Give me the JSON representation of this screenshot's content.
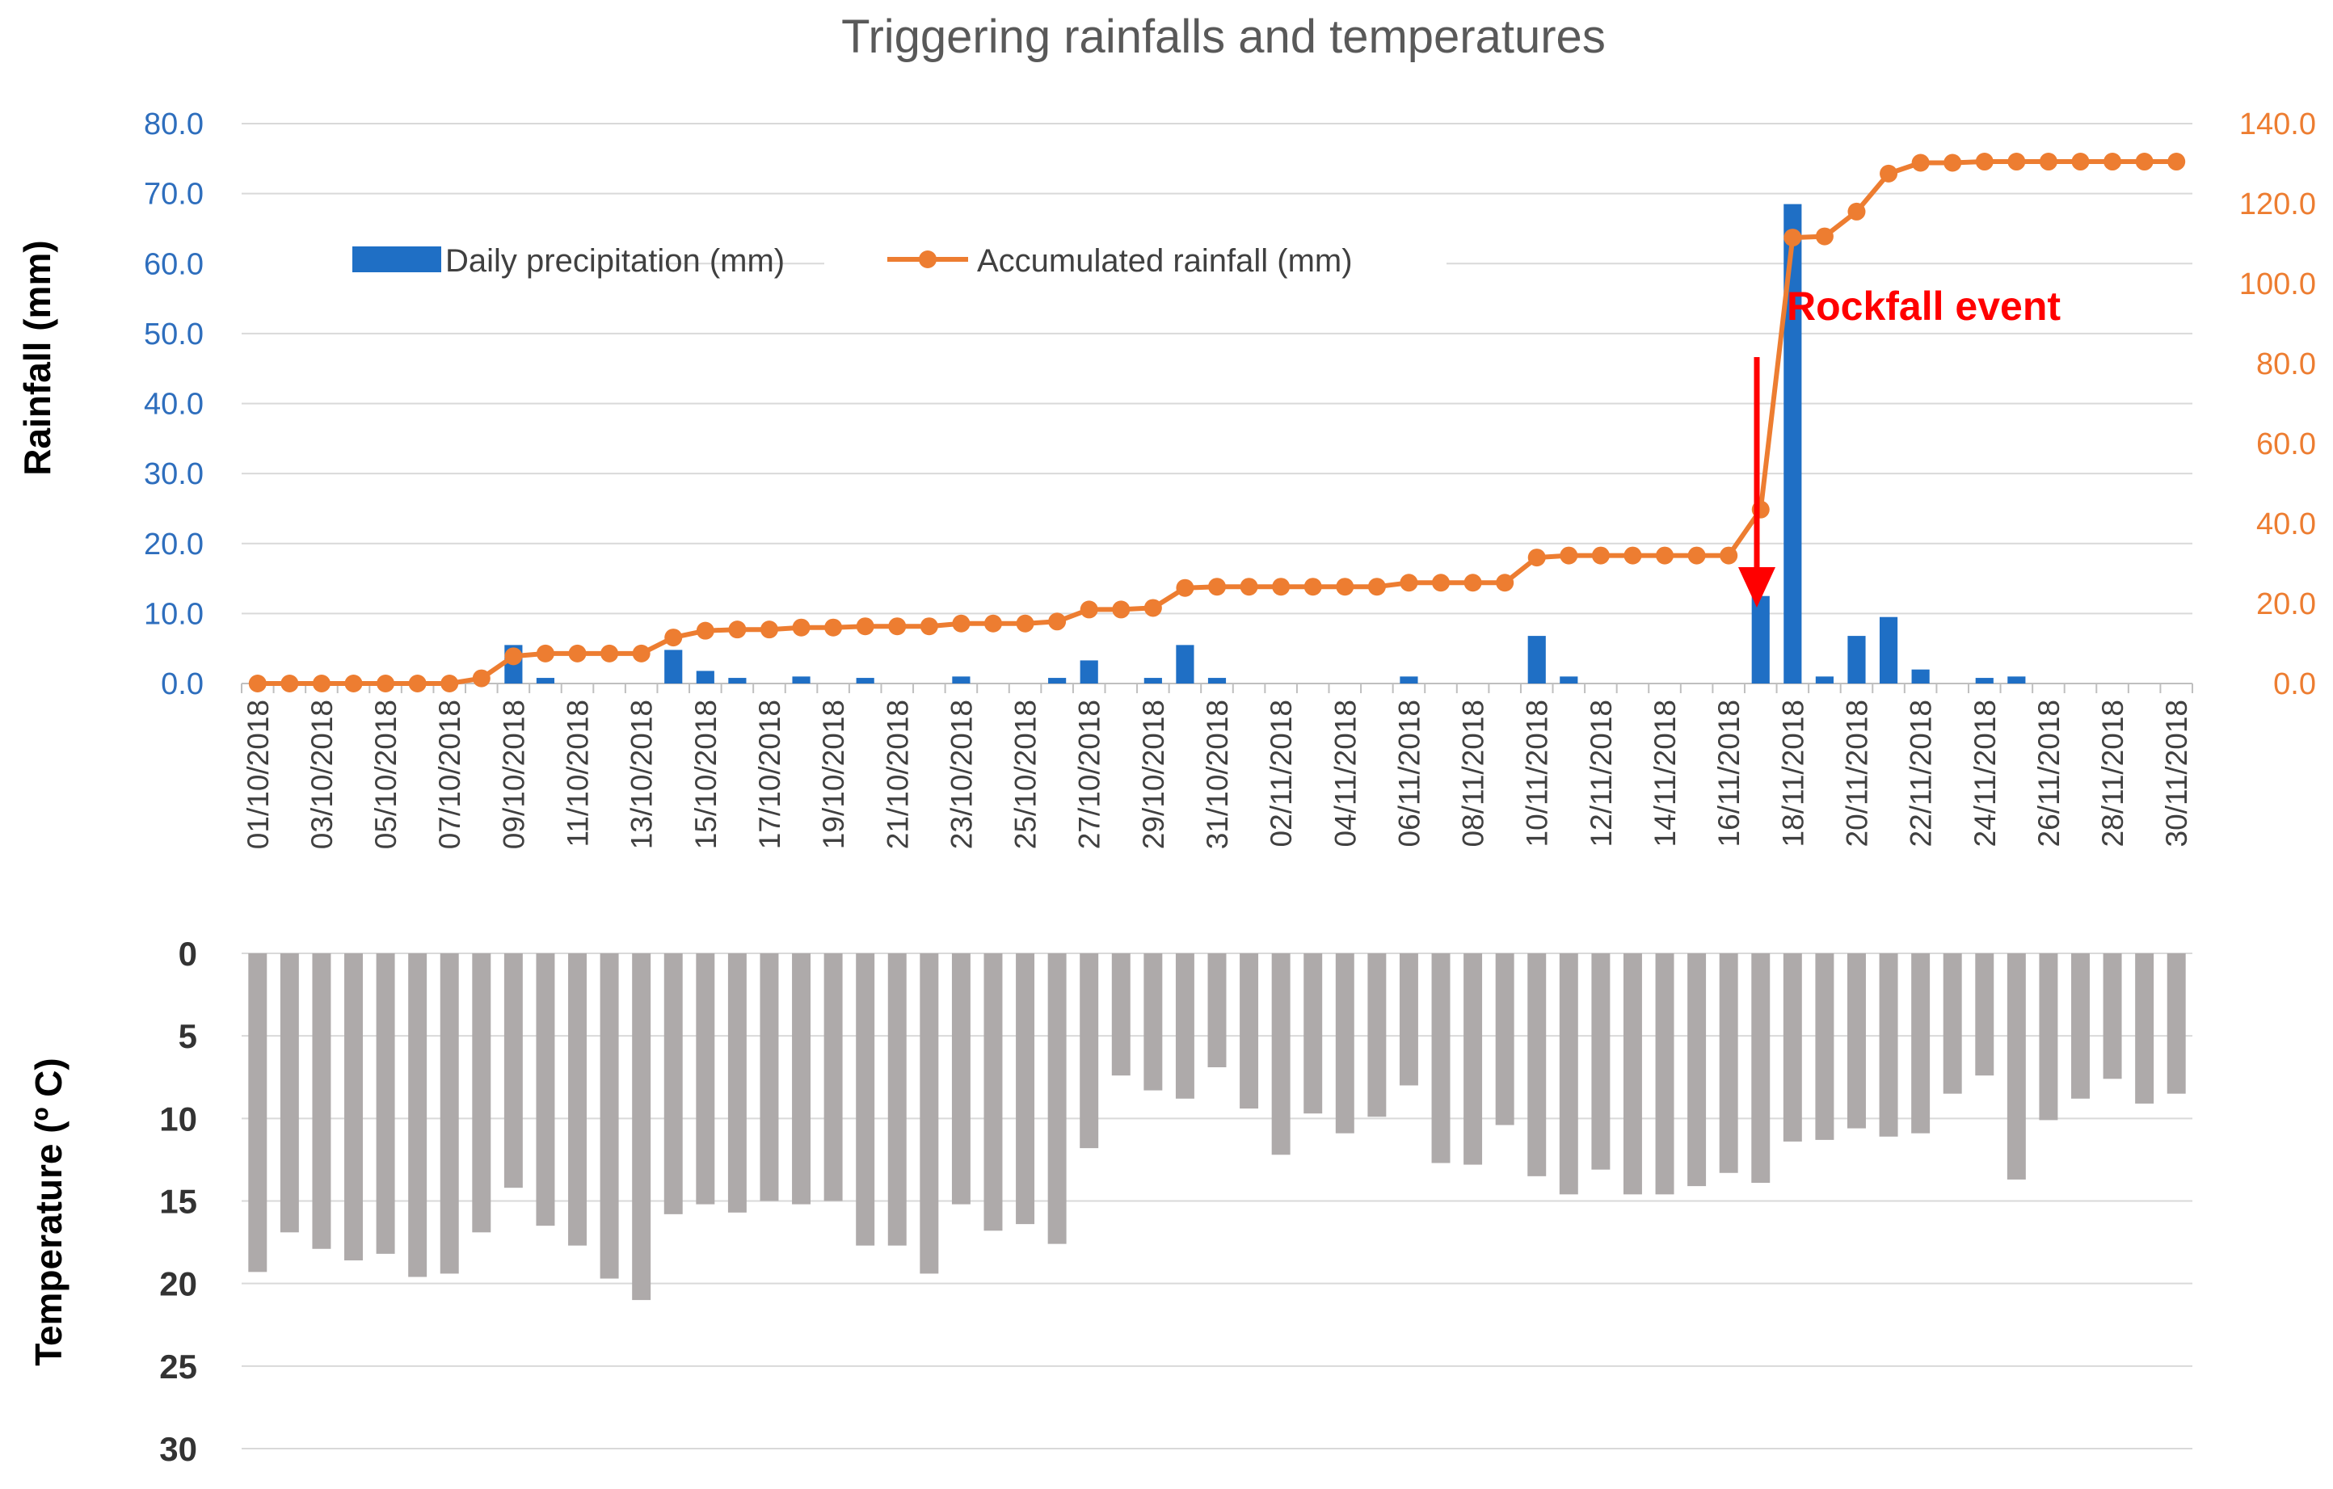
{
  "chart_data": [
    {
      "type": "bar+line",
      "title": "Triggering rainfalls and temperatures",
      "ylabel": "Rainfall (mm)",
      "ylim": [
        0,
        80
      ],
      "y_ticks": [
        "0.0",
        "10.0",
        "20.0",
        "30.0",
        "40.0",
        "50.0",
        "60.0",
        "70.0",
        "80.0"
      ],
      "y2lim": [
        0,
        140
      ],
      "y2_ticks": [
        "0.0",
        "20.0",
        "40.0",
        "60.0",
        "80.0",
        "100.0",
        "120.0",
        "140.0"
      ],
      "x_tick_labels": [
        "01/10/2018",
        "03/10/2018",
        "05/10/2018",
        "07/10/2018",
        "09/10/2018",
        "11/10/2018",
        "13/10/2018",
        "15/10/2018",
        "17/10/2018",
        "19/10/2018",
        "21/10/2018",
        "23/10/2018",
        "25/10/2018",
        "27/10/2018",
        "29/10/2018",
        "31/10/2018",
        "02/11/2018",
        "04/11/2018",
        "06/11/2018",
        "08/11/2018",
        "10/11/2018",
        "12/11/2018",
        "14/11/2018",
        "16/11/2018",
        "18/11/2018",
        "20/11/2018",
        "22/11/2018",
        "24/11/2018",
        "26/11/2018",
        "28/11/2018",
        "30/11/2018"
      ],
      "legend": [
        "Daily precipitation (mm)",
        "Accumulated rainfall (mm)"
      ],
      "series": [
        {
          "name": "Daily precipitation (mm)",
          "type": "bar",
          "axis": "left",
          "color": "#1f6fc5",
          "values": [
            0,
            0,
            0,
            0,
            0,
            0,
            0,
            0,
            5.5,
            0.8,
            0,
            0,
            0,
            4.8,
            1.8,
            0.8,
            0,
            1.0,
            0,
            0.8,
            0,
            0,
            1.0,
            0,
            0,
            0.8,
            3.3,
            0,
            0.8,
            5.5,
            0.8,
            0,
            0,
            0,
            0,
            0,
            1.0,
            0,
            0,
            0,
            6.8,
            1.0,
            0,
            0,
            0,
            0,
            0,
            12.5,
            68.5,
            1.0,
            6.8,
            9.5,
            2.0,
            0,
            0.8,
            1.0,
            0,
            0,
            0,
            0,
            0
          ]
        },
        {
          "name": "Accumulated rainfall (mm)",
          "type": "line",
          "axis": "right",
          "color": "#ed7d31",
          "values": [
            0,
            0,
            0,
            0,
            0,
            0,
            0,
            1.3,
            6.8,
            7.5,
            7.5,
            7.5,
            7.5,
            11.5,
            13.2,
            13.5,
            13.5,
            14.0,
            14.0,
            14.3,
            14.3,
            14.3,
            15.0,
            15.0,
            15.0,
            15.5,
            18.5,
            18.5,
            18.9,
            23.9,
            24.2,
            24.2,
            24.2,
            24.2,
            24.2,
            24.2,
            25.2,
            25.2,
            25.2,
            25.2,
            31.5,
            32.0,
            32.0,
            32.0,
            32.0,
            32.0,
            32.0,
            43.5,
            111.5,
            111.8,
            118.0,
            127.5,
            130.2,
            130.2,
            130.5,
            130.5,
            130.5,
            130.5,
            130.5,
            130.5,
            130.5
          ]
        }
      ],
      "annotations": [
        {
          "text": "Rockfall event",
          "date": "17/11/2018",
          "color": "#ff0000"
        }
      ]
    },
    {
      "type": "bar",
      "ylabel": "Temperature (º C)",
      "ylim": [
        0,
        30
      ],
      "y_inverted": true,
      "y_ticks": [
        "0",
        "5",
        "10",
        "15",
        "20",
        "25",
        "30"
      ],
      "series": [
        {
          "name": "Temperature",
          "color": "#aeaaaa",
          "values": [
            19.3,
            16.9,
            17.9,
            18.6,
            18.2,
            19.6,
            19.4,
            16.9,
            14.2,
            16.5,
            17.7,
            19.7,
            21.0,
            15.8,
            15.2,
            15.7,
            15.0,
            15.2,
            15.0,
            17.7,
            17.7,
            19.4,
            15.2,
            16.8,
            16.4,
            17.6,
            11.8,
            7.4,
            8.3,
            8.8,
            6.9,
            9.4,
            12.2,
            9.7,
            10.9,
            9.9,
            8.0,
            12.7,
            12.8,
            10.4,
            13.5,
            14.6,
            13.1,
            14.6,
            14.6,
            14.1,
            13.3,
            13.9,
            11.4,
            11.3,
            10.6,
            11.1,
            10.9,
            8.5,
            7.4,
            13.7,
            10.1,
            8.8,
            7.6,
            9.1,
            8.5
          ]
        }
      ]
    }
  ]
}
